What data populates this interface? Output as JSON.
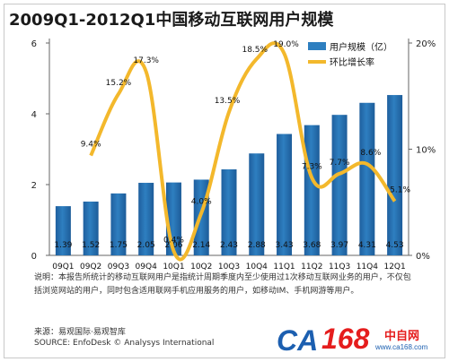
{
  "title": "2009Q1-2012Q1中国移动互联网用户规模",
  "note": "说明：本报告所统计的移动互联网用户是指统计周期季度内至少使用过1次移动互联网业务的用户，不仅包括浏览网站的用户，同时包含适用联网手机应用服务的用户，如移动IM、手机网游等用户。",
  "source_cn": "来源：易观国际·易观智库",
  "source_en": "SOURCE: EnfoDesk © Analysys International",
  "logo": {
    "ca": "CA",
    "num": "168",
    "cn": "中自网",
    "domain": "www.ca168.com"
  },
  "colors": {
    "bar": "#2e7fc0",
    "line": "#f3b82c"
  },
  "chart_data": {
    "type": "bar",
    "title": "2009Q1-2012Q1中国移动互联网用户规模",
    "categories": [
      "09Q1",
      "09Q2",
      "09Q3",
      "09Q4",
      "10Q1",
      "10Q2",
      "10Q3",
      "10Q4",
      "11Q1",
      "11Q2",
      "11Q3",
      "11Q4",
      "12Q1"
    ],
    "series": [
      {
        "name": "用户规模（亿）",
        "type": "bar",
        "axis": "left",
        "values": [
          1.39,
          1.52,
          1.75,
          2.05,
          2.06,
          2.14,
          2.43,
          2.88,
          3.43,
          3.68,
          3.97,
          4.31,
          4.53
        ],
        "labels": [
          "1.39",
          "1.52",
          "1.75",
          "2.05",
          "2.06",
          "2.14",
          "2.43",
          "2.88",
          "3.43",
          "3.68",
          "3.97",
          "4.31",
          "4.53"
        ]
      },
      {
        "name": "环比增长率",
        "type": "line",
        "axis": "right",
        "values": [
          null,
          9.4,
          15.2,
          17.3,
          0.4,
          4.0,
          13.5,
          18.5,
          19.0,
          7.3,
          7.7,
          8.6,
          5.1
        ],
        "labels": [
          "",
          "9.4%",
          "15.2%",
          "17.3%",
          "0.4%",
          "4.0%",
          "13.5%",
          "18.5%",
          "19.0%",
          "7.3%",
          "7.7%",
          "8.6%",
          "5.1%"
        ]
      }
    ],
    "ylim": [
      0,
      6
    ],
    "yticks": [
      "0",
      "2",
      "4",
      "6"
    ],
    "y2lim": [
      0,
      20
    ],
    "y2ticks": [
      "0%",
      "10%",
      "20%"
    ],
    "legend": "top-right",
    "grid": false
  }
}
